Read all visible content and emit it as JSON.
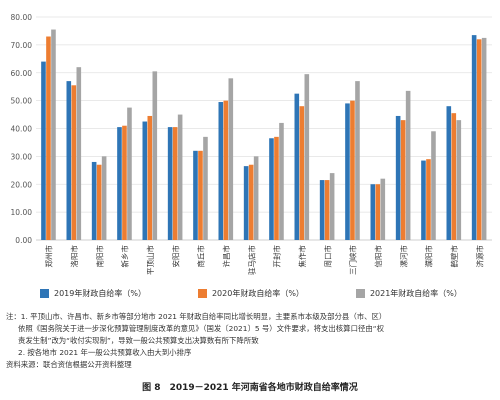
{
  "chart_data": {
    "type": "bar",
    "yunit": "百分数",
    "ylim": [
      0,
      80
    ],
    "yticks": [
      "0.00",
      "10.00",
      "20.00",
      "30.00",
      "40.00",
      "50.00",
      "60.00",
      "70.00",
      "80.00"
    ],
    "grid": true,
    "legend_position": "bottom",
    "categories": [
      "郑州市",
      "洛阳市",
      "南阳市",
      "新乡市",
      "平顶山市",
      "安阳市",
      "商丘市",
      "许昌市",
      "驻马店市",
      "开封市",
      "焦作市",
      "周口市",
      "三门峡市",
      "信阳市",
      "漯河市",
      "濮阳市",
      "鹤壁市",
      "济源市"
    ],
    "series": [
      {
        "name": "2019年财政自给率（%）",
        "color": "#2e75b6",
        "values": [
          64,
          57,
          28,
          40.5,
          42.5,
          40.5,
          32,
          49.5,
          26.5,
          36.5,
          52.5,
          21.5,
          49,
          20,
          44.5,
          28.5,
          48,
          73.5
        ]
      },
      {
        "name": "2020年财政自给率（%）",
        "color": "#ed7d31",
        "values": [
          73,
          55.5,
          27,
          41,
          44.5,
          40.5,
          32,
          50,
          27,
          37,
          48,
          21.5,
          50,
          20,
          43,
          29,
          45.5,
          72
        ]
      },
      {
        "name": "2021年财政自给率（%）",
        "color": "#a5a5a5",
        "values": [
          75.5,
          62,
          30,
          47.5,
          60.5,
          45,
          37,
          58,
          30,
          42,
          59.5,
          24,
          57,
          22,
          53.5,
          39,
          43,
          72.5
        ]
      }
    ]
  },
  "notes": {
    "line1": "注：1. 平顶山市、许昌市、新乡市等部分地市 2021 年财政自给率同比增长明显，主要系市本级及部分县（市、区）",
    "line2": "依照《国务院关于进一步深化预算管理制度改革的意见》（国发〔2021〕5 号）文件要求，将支出核算口径由“权",
    "line3": "责发生制”改为“收付实现制”，导致一般公共预算支出决算数有所下降所致",
    "line4": "2. 按各地市 2021 年一般公共预算收入由大到小排序",
    "source": "资料来源：联合资信根据公开资料整理"
  },
  "caption": "图 8　2019－2021 年河南省各地市财政自给率情况"
}
